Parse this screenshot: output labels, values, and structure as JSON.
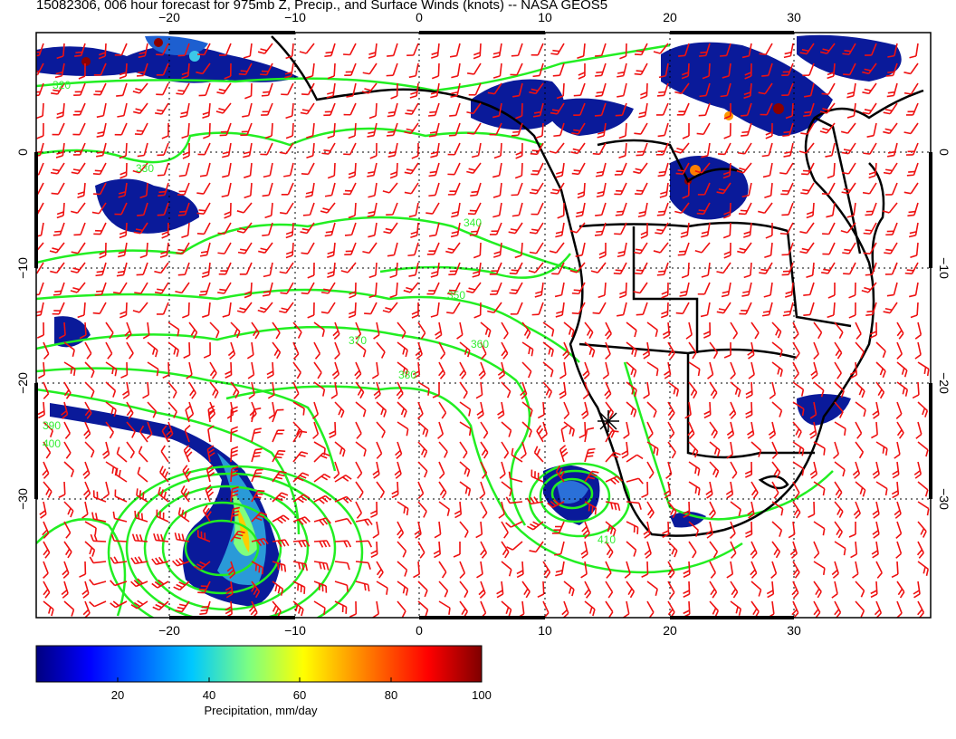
{
  "title": "15082306, 006 hour forecast for 975mb Z, Precip., and Surface Winds (knots) -- NASA GEOS5",
  "colors": {
    "contour": "#22ee22",
    "barb": "#ee1111",
    "coast": "#000000",
    "grid": "#000000"
  },
  "axes": {
    "lon_ticks": [
      "−20",
      "−10",
      "0",
      "10",
      "20",
      "30"
    ],
    "lat_ticks": [
      "0",
      "−10",
      "−20",
      "−30"
    ]
  },
  "contour_labels": [
    "320",
    "330",
    "340",
    "350",
    "360",
    "370",
    "380",
    "390",
    "400",
    "410"
  ],
  "station_marker": "star-marker",
  "colorbar": {
    "label": "Precipitation, mm/day",
    "ticks": [
      "20",
      "40",
      "60",
      "80",
      "100"
    ],
    "range": [
      0,
      100
    ],
    "stops": [
      "#00007f",
      "#0000ff",
      "#00c8ff",
      "#7fff7f",
      "#ffff00",
      "#ff7f00",
      "#ff0000",
      "#7f0000"
    ]
  }
}
